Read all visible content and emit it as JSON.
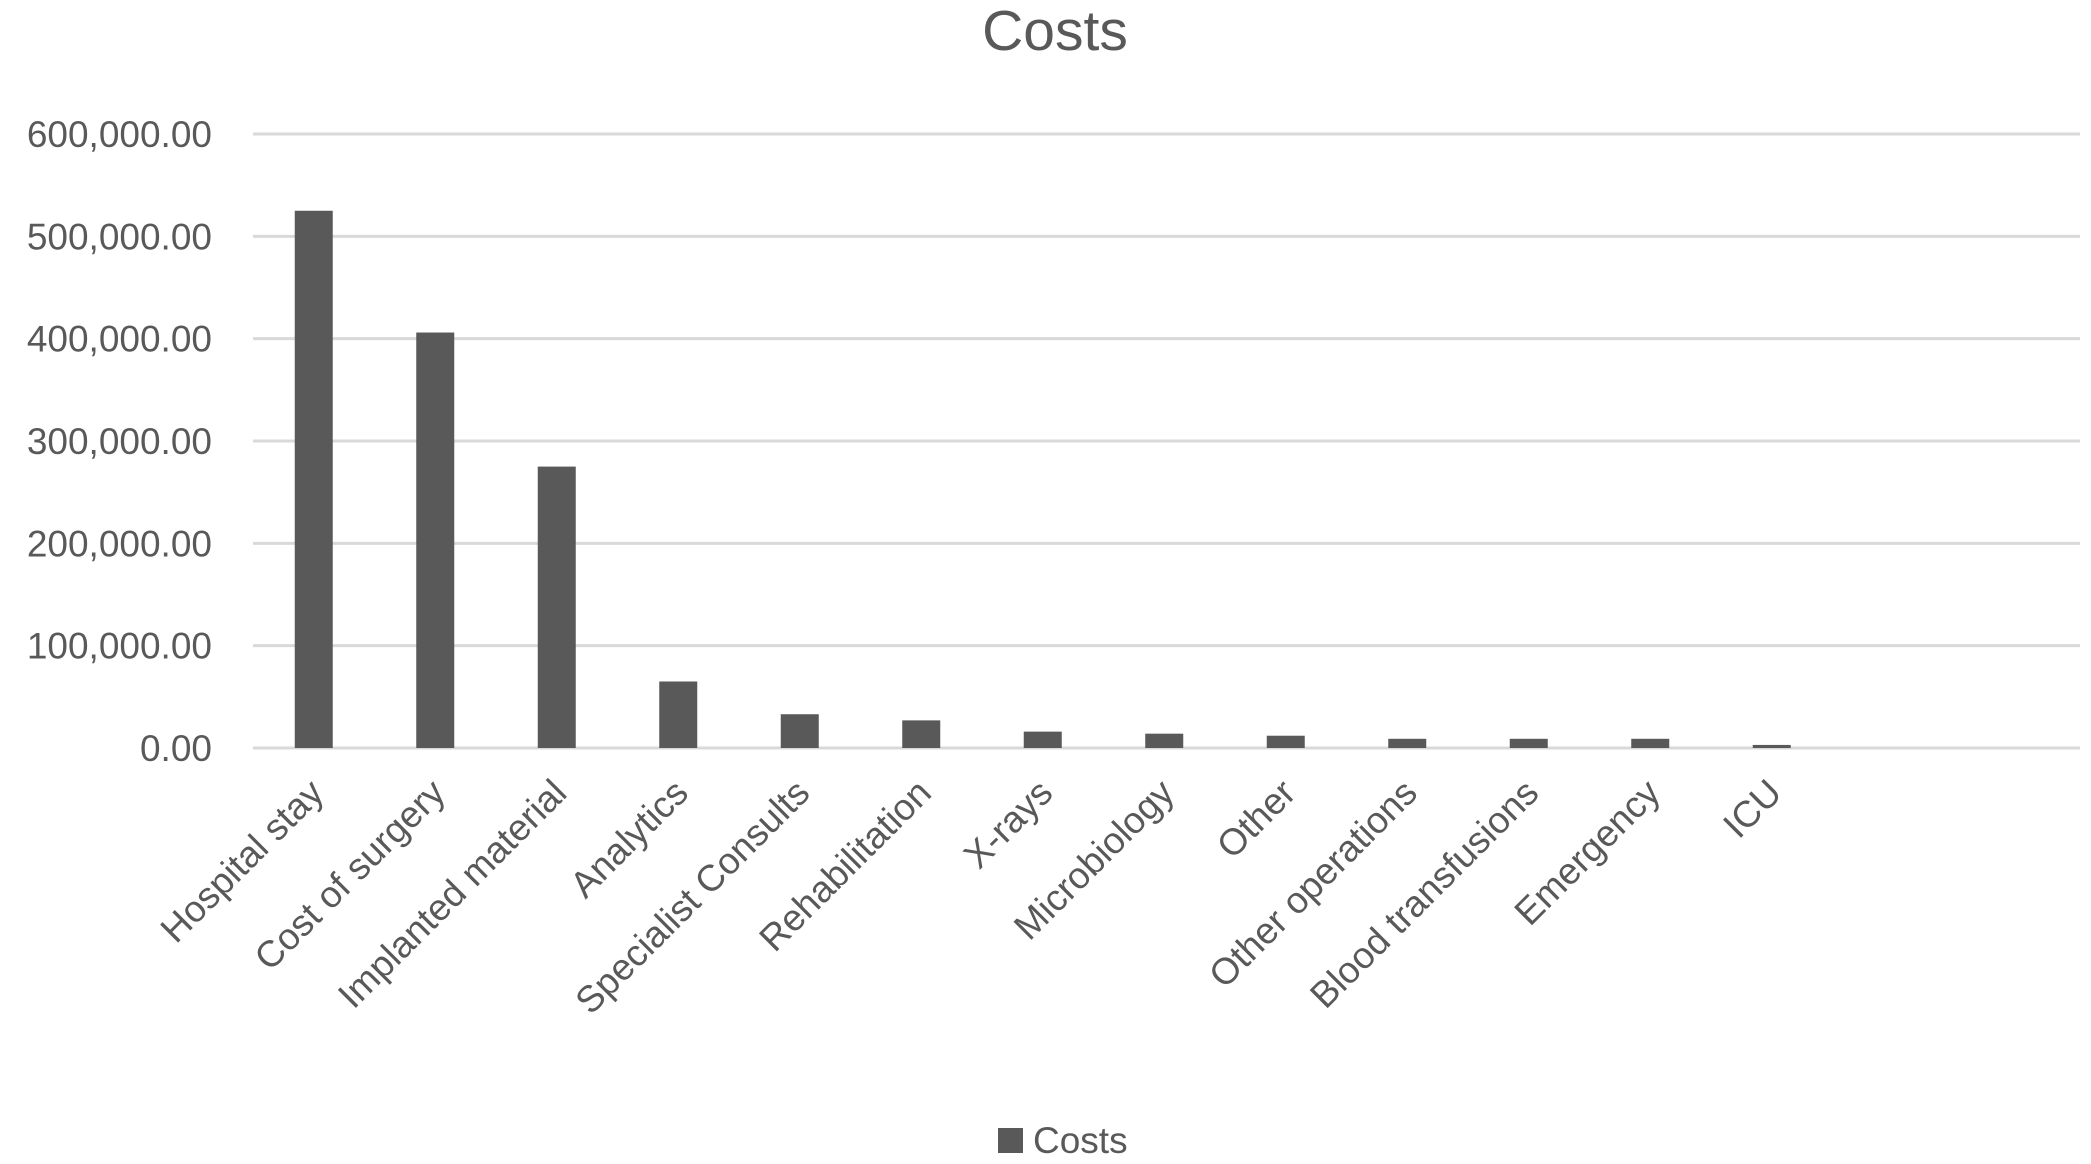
{
  "chart_data": {
    "type": "bar",
    "title": "Costs",
    "xlabel": "",
    "ylabel": "",
    "categories": [
      "Hospital stay",
      "Cost of surgery",
      "Implanted material",
      "Analytics",
      "Specialist Consults",
      "Rehabilitation",
      "X-rays",
      "Microbiology",
      "Other",
      "Other operations",
      "Blood transfusions",
      "Emergency",
      "ICU"
    ],
    "series": [
      {
        "name": "Costs",
        "color": "#595959",
        "values": [
          525000,
          406000,
          275000,
          65000,
          33000,
          27000,
          16000,
          14000,
          12000,
          9000,
          9000,
          9000,
          3000
        ]
      }
    ],
    "ylim": [
      0,
      600000
    ],
    "yticks": [
      0,
      100000,
      200000,
      300000,
      400000,
      500000,
      600000
    ],
    "ytick_labels": [
      "0.00",
      "100,000.00",
      "200,000.00",
      "300,000.00",
      "400,000.00",
      "500,000.00",
      "600,000.00"
    ],
    "grid": true,
    "legend": {
      "position": "bottom",
      "entries": [
        "Costs"
      ]
    },
    "colors": {
      "bar": "#595959",
      "grid": "#d9d9d9",
      "text": "#595959"
    }
  }
}
